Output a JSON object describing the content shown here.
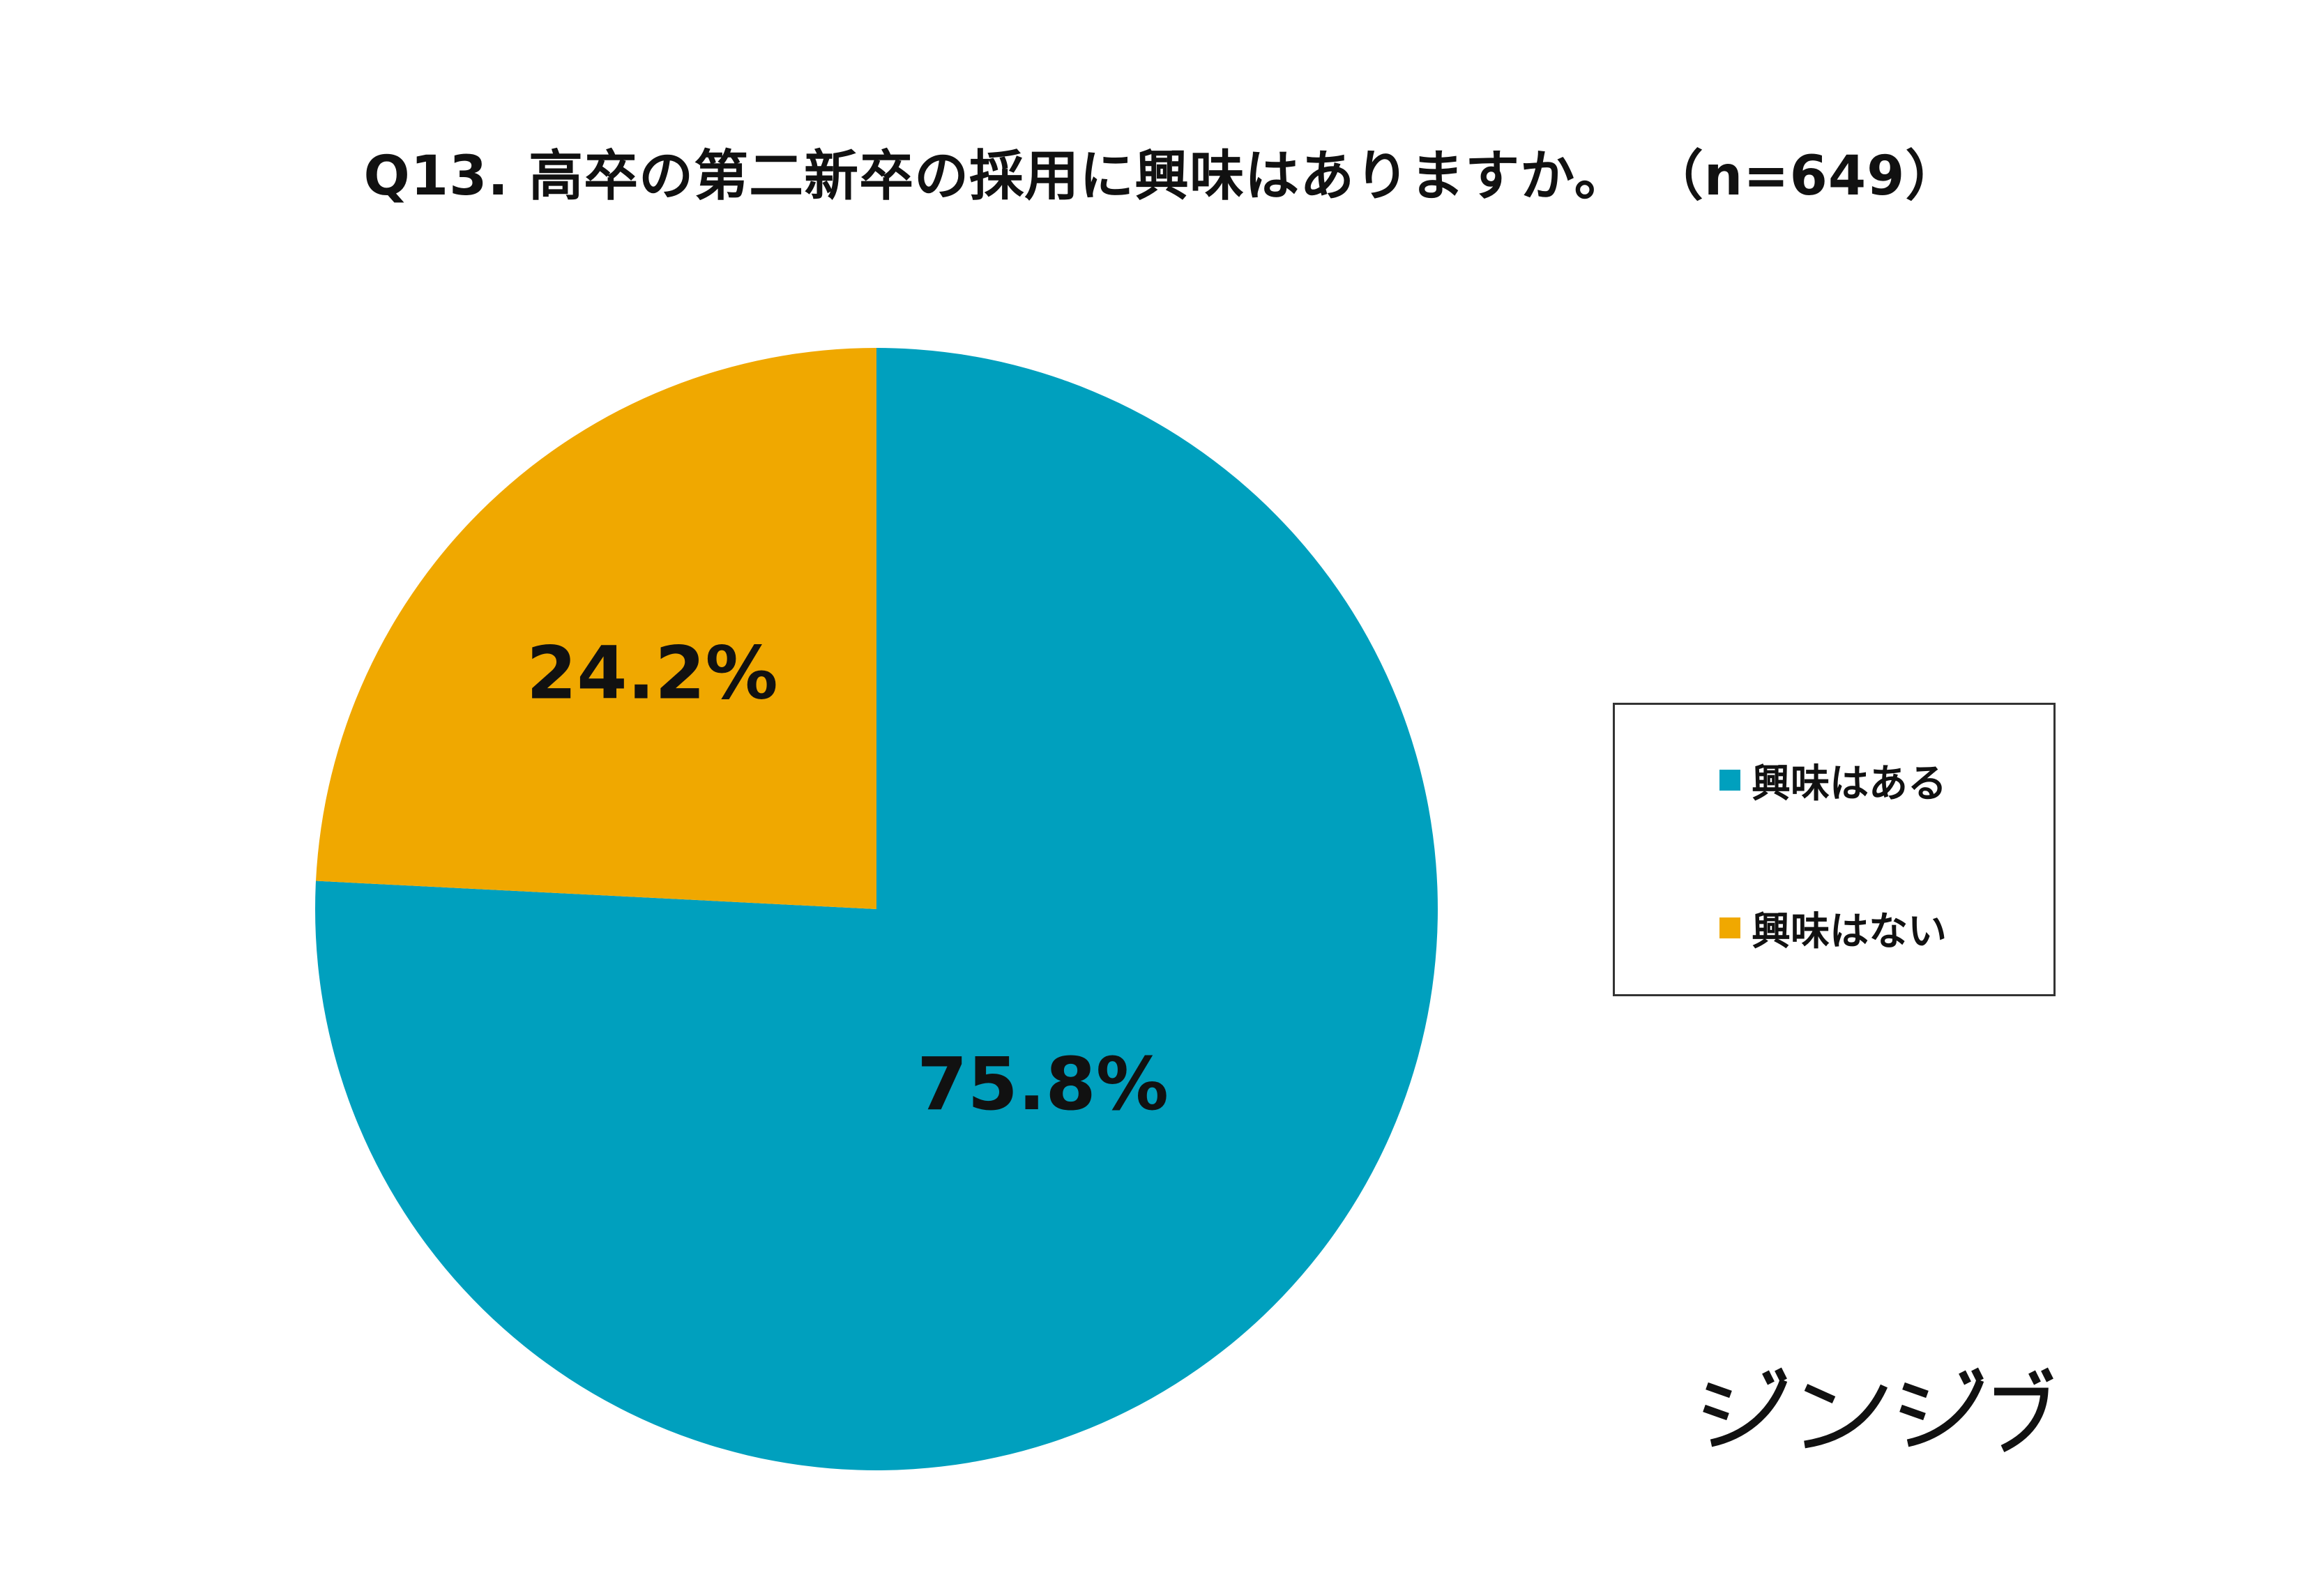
{
  "chart_data": {
    "type": "pie",
    "title": "Q13. 高卒の第二新卒の採用に興味はありますか。 （n=649）",
    "categories": [
      "興味はある",
      "興味はない"
    ],
    "values": [
      75.8,
      24.2
    ],
    "data_labels": [
      "75.8%",
      "24.2%"
    ],
    "colors": [
      "#00A0BE",
      "#F0A800"
    ],
    "start_angle": "12 o'clock",
    "direction": "clockwise",
    "legend": {
      "placement": "right",
      "border": true
    }
  },
  "logo": {
    "text": "ジンジブ",
    "color": "#111111"
  }
}
